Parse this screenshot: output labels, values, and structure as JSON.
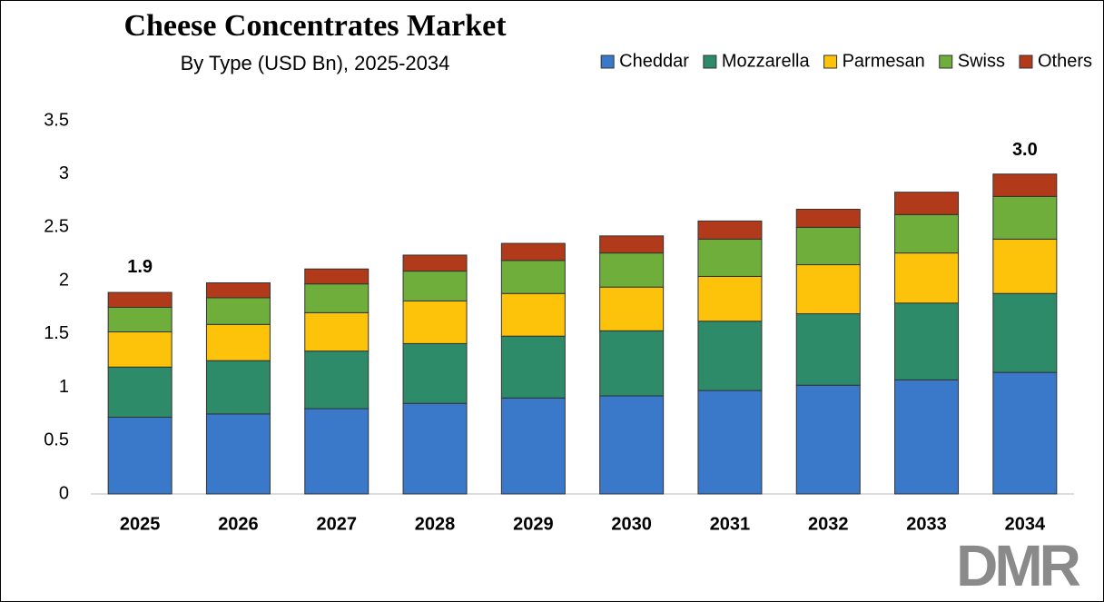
{
  "chart_data": {
    "type": "stacked-bar",
    "title": "Cheese Concentrates Market",
    "subtitle": "By Type (USD Bn), 2025-2034",
    "categories": [
      "2025",
      "2026",
      "2027",
      "2028",
      "2029",
      "2030",
      "2031",
      "2032",
      "2033",
      "2034"
    ],
    "series": [
      {
        "name": "Cheddar",
        "color": "#3a78c9",
        "values": [
          0.72,
          0.75,
          0.8,
          0.85,
          0.9,
          0.92,
          0.97,
          1.02,
          1.07,
          1.14
        ]
      },
      {
        "name": "Mozzarella",
        "color": "#2e8b6a",
        "values": [
          0.47,
          0.5,
          0.54,
          0.56,
          0.58,
          0.61,
          0.65,
          0.67,
          0.72,
          0.74
        ]
      },
      {
        "name": "Parmesan",
        "color": "#fcc30a",
        "values": [
          0.33,
          0.34,
          0.36,
          0.4,
          0.4,
          0.41,
          0.42,
          0.46,
          0.47,
          0.51
        ]
      },
      {
        "name": "Swiss",
        "color": "#6fae3a",
        "values": [
          0.23,
          0.25,
          0.27,
          0.28,
          0.31,
          0.32,
          0.35,
          0.35,
          0.36,
          0.4
        ]
      },
      {
        "name": "Others",
        "color": "#b03a1a",
        "values": [
          0.14,
          0.14,
          0.14,
          0.15,
          0.16,
          0.16,
          0.17,
          0.17,
          0.21,
          0.21
        ]
      }
    ],
    "annotations": [
      {
        "category_index": 0,
        "value": 1.9,
        "label": "1.9"
      },
      {
        "category_index": 9,
        "value": 3,
        "label": "3.0"
      }
    ],
    "ylim": [
      0,
      3.5
    ],
    "yticks": [
      0,
      0.5,
      1,
      1.5,
      2,
      2.5,
      3,
      3.5
    ],
    "grid": false,
    "legend": "top-right"
  },
  "logo": "DMR"
}
